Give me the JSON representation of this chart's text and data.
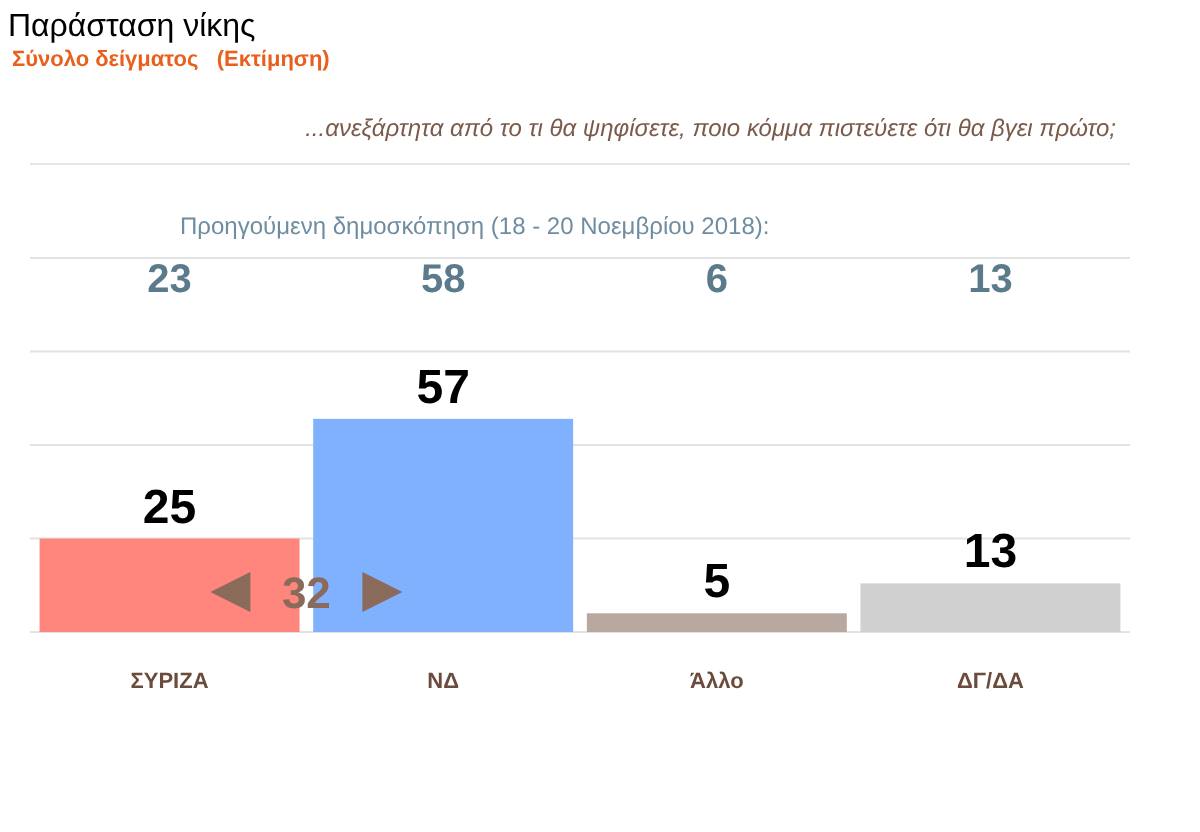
{
  "chart_data": {
    "type": "bar",
    "title": "Παράσταση νίκης",
    "subtitle": "Σύνολο δείγματος   (Εκτίμηση)",
    "categories": [
      "ΣΥΡΙΖΑ",
      "ΝΔ",
      "Άλλο",
      "ΔΓ/ΔΑ"
    ],
    "values": [
      25,
      57,
      5,
      13
    ],
    "colors": [
      "#ff867c",
      "#80b1ff",
      "#b8a89f",
      "#d0d0d0"
    ],
    "data_labels": true,
    "ylim": [
      0,
      100
    ],
    "yticks": [
      {
        "value": 0,
        "label": null
      },
      {
        "value": 25,
        "label": null
      },
      {
        "value": 50,
        "label": null
      },
      {
        "value": 75,
        "label": null
      },
      {
        "value": 100,
        "label": null
      }
    ],
    "tick_labels": "x",
    "grid": "y",
    "annotations": [
      "...ανεξάρτητα από το τι θα ψηφίσετε, ποιο κόμμα πιστεύετε ότι θα βγει πρώτο;",
      "Προηγούμενη δημοσκόπηση (18 - 20 Νοεμβρίου 2018):",
      "23",
      "58",
      "6",
      "13",
      "32"
    ]
  }
}
